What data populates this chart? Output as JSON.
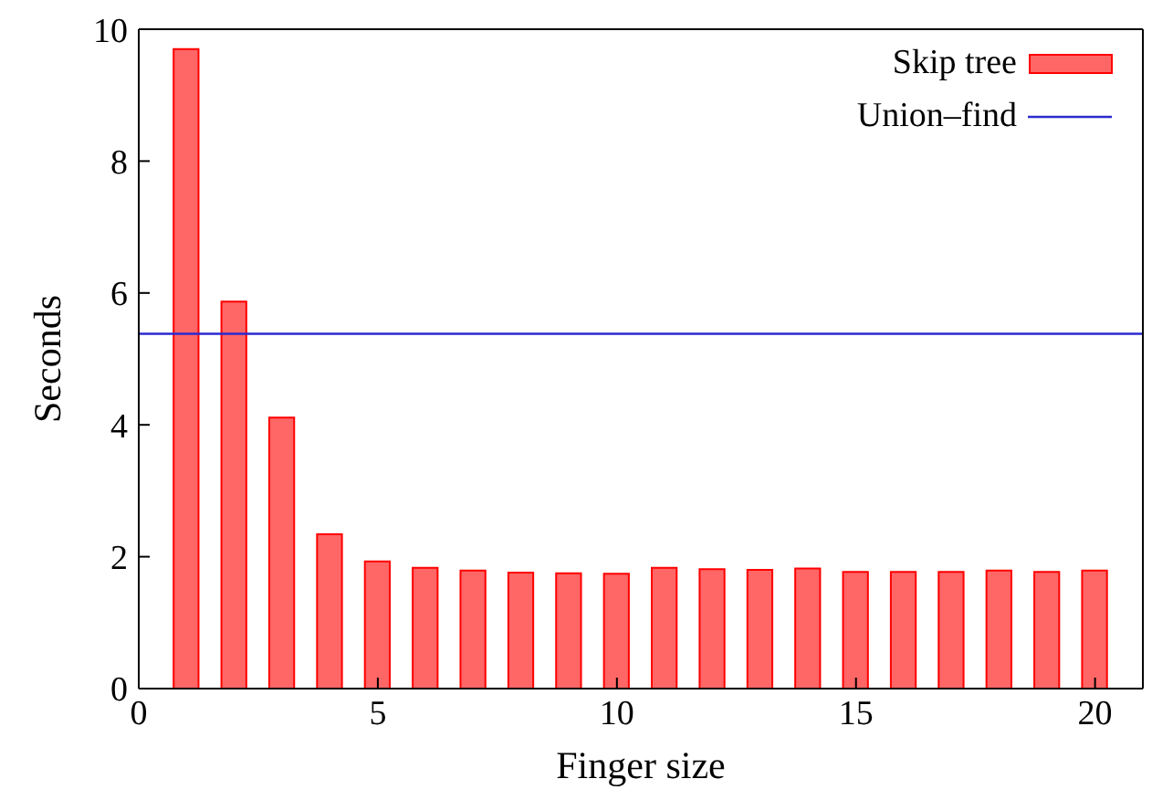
{
  "chart_data": {
    "type": "bar",
    "xlabel": "Finger size",
    "ylabel": "Seconds",
    "x": [
      1,
      2,
      3,
      4,
      5,
      6,
      7,
      8,
      9,
      10,
      11,
      12,
      13,
      14,
      15,
      16,
      17,
      18,
      19,
      20
    ],
    "series": [
      {
        "name": "Skip tree",
        "color": "#ff6666",
        "values": [
          9.7,
          5.87,
          4.11,
          2.34,
          1.93,
          1.83,
          1.79,
          1.76,
          1.75,
          1.74,
          1.83,
          1.81,
          1.8,
          1.82,
          1.77,
          1.77,
          1.77,
          1.79,
          1.77,
          1.79
        ]
      },
      {
        "name": "Union–find",
        "type": "line",
        "color": "#2a2ad0",
        "x": [
          0,
          21
        ],
        "values": [
          5.38,
          5.38
        ]
      }
    ],
    "xlim": [
      0,
      21
    ],
    "xticks": [
      0,
      5,
      10,
      15,
      20
    ],
    "ylim": [
      0,
      10
    ],
    "yticks": [
      0,
      2,
      4,
      6,
      8,
      10
    ],
    "grid": false,
    "legend": "top right",
    "marker": "none",
    "line_style": "solid"
  }
}
